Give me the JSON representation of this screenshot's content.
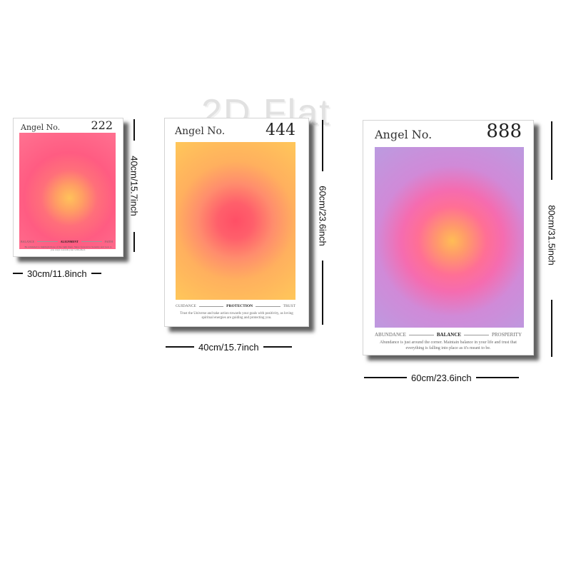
{
  "watermark": "2D Flat",
  "posters": [
    {
      "title": "Angel No.",
      "number": "222",
      "words": [
        "BALANCE",
        "ALIGNMENT",
        "FAITH"
      ],
      "desc": "Be reminded to highlight those of the right there. Show forward to Serenity and look to you ways towards your with effect.",
      "width_label": "30cm/11.8inch",
      "height_label": "40cm/15.7inch"
    },
    {
      "title": "Angel No.",
      "number": "444",
      "words": [
        "GUIDANCE",
        "PROTECTION",
        "TRUST"
      ],
      "desc": "Trust the Universe and take action towards your goals with positivity, as loving spiritual energies are guiding and protecting you.",
      "width_label": "40cm/15.7inch",
      "height_label": "60cm/23.6inch"
    },
    {
      "title": "Angel No.",
      "number": "888",
      "words": [
        "ABUNDANCE",
        "BALANCE",
        "PROSPERITY"
      ],
      "desc": "Abundance is just around the corner. Maintain balance in your life and trust that everything is falling into place as it's meant to be.",
      "width_label": "60cm/23.6inch",
      "height_label": "80cm/31.5inch"
    }
  ]
}
